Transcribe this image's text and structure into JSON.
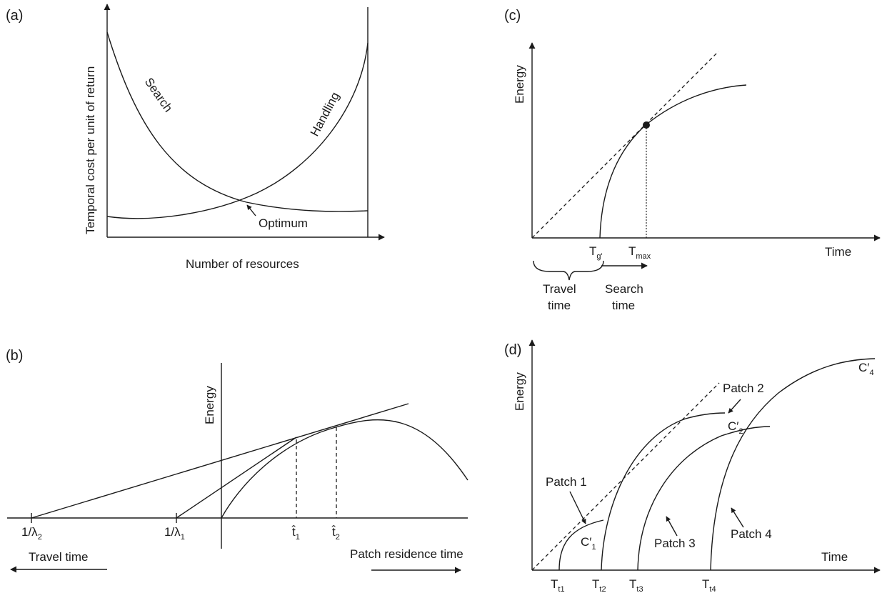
{
  "panel_a": {
    "tag": "(a)",
    "ylabel": "Temporal cost per unit of return",
    "xlabel": "Number of resources",
    "curve_search": "Search",
    "curve_handling": "Handling",
    "optimum": "Optimum"
  },
  "panel_b": {
    "tag": "(b)",
    "ylabel": "Energy",
    "tick_lambda2": "1/λ",
    "tick_lambda2_sub": "2",
    "tick_lambda1": "1/λ",
    "tick_lambda1_sub": "1",
    "tick_t1": "t̂",
    "tick_t1_sub": "1",
    "tick_t2": "t̂",
    "tick_t2_sub": "2",
    "travel": "Travel time",
    "residence": "Patch residence time"
  },
  "panel_c": {
    "tag": "(c)",
    "ylabel": "Energy",
    "xlabel": "Time",
    "tg": "T",
    "tg_sub": "g'",
    "tmax": "T",
    "tmax_sub": "max",
    "travel_1": "Travel",
    "travel_2": "time",
    "search_1": "Search",
    "search_2": "time"
  },
  "panel_d": {
    "tag": "(d)",
    "ylabel": "Energy",
    "xlabel": "Time",
    "ticks": [
      {
        "main": "T",
        "sub": "t1"
      },
      {
        "main": "T",
        "sub": "t2"
      },
      {
        "main": "T",
        "sub": "t3"
      },
      {
        "main": "T",
        "sub": "t4"
      }
    ],
    "patch1": "Patch 1",
    "patch2": "Patch 2",
    "patch3": "Patch 3",
    "patch4": "Patch 4",
    "c1": "C′",
    "c1_sub": "1",
    "c2": "C′",
    "c2_sub": "2",
    "c4": "C′",
    "c4_sub": "4"
  }
}
